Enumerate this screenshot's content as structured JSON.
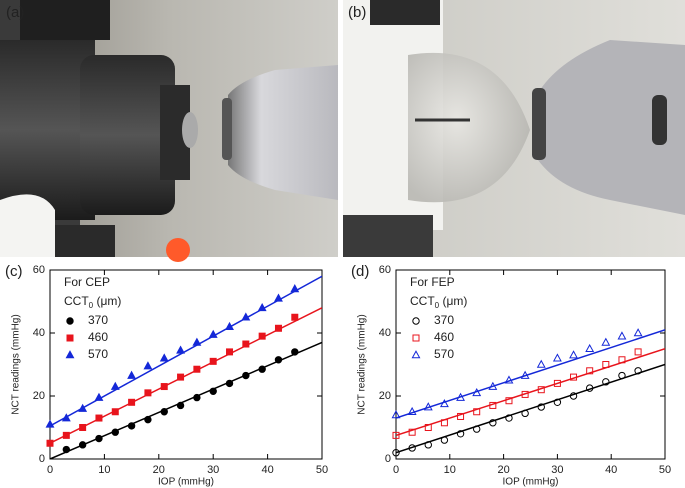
{
  "photo_labels": [
    "(a)",
    "(b)"
  ],
  "chart_data": [
    {
      "type": "scatter",
      "panel_label": "(c)",
      "x_label": "IOP (mmHg)",
      "y_label": "NCT readings (mmHg)",
      "legend_title": "For CEP",
      "legend_header": {
        "main": "CCT",
        "sub": "0",
        "unit": " (μm)"
      },
      "xlim": [
        0,
        50
      ],
      "ylim": [
        0,
        60
      ],
      "xticks": [
        0,
        10,
        20,
        30,
        40,
        50
      ],
      "yticks": [
        0,
        20,
        40,
        60
      ],
      "x": [
        0,
        3,
        6,
        9,
        12,
        15,
        18,
        21,
        24,
        27,
        30,
        33,
        36,
        39,
        42,
        45
      ],
      "series": [
        {
          "name": "370",
          "color": "#000000",
          "marker": "circle",
          "filled": true,
          "values": [
            null,
            3,
            4.5,
            6.5,
            8.5,
            10.5,
            12.5,
            15,
            17,
            19.5,
            21.5,
            24,
            26.5,
            28.5,
            31.5,
            34
          ],
          "fit": [
            0,
            37
          ]
        },
        {
          "name": "460",
          "color": "#e8141c",
          "marker": "square",
          "filled": true,
          "values": [
            5,
            7.5,
            10,
            13,
            15,
            18,
            21,
            23,
            26,
            28.5,
            31,
            34,
            36.5,
            39,
            41.5,
            45
          ],
          "fit": [
            5,
            48
          ]
        },
        {
          "name": "570",
          "color": "#1428d8",
          "marker": "triangle",
          "filled": true,
          "values": [
            11,
            13,
            16,
            19.5,
            23,
            26.5,
            29.5,
            32,
            34.5,
            37,
            39.5,
            42,
            45,
            48,
            51,
            54
          ],
          "fit": [
            10.5,
            58
          ]
        }
      ]
    },
    {
      "type": "scatter",
      "panel_label": "(d)",
      "x_label": "IOP (mmHg)",
      "y_label": "NCT readings (mmHg)",
      "legend_title": "For FEP",
      "legend_header": {
        "main": "CCT",
        "sub": "0",
        "unit": " (μm)"
      },
      "xlim": [
        0,
        50
      ],
      "ylim": [
        0,
        60
      ],
      "xticks": [
        0,
        10,
        20,
        30,
        40,
        50
      ],
      "yticks": [
        0,
        20,
        40,
        60
      ],
      "x": [
        0,
        3,
        6,
        9,
        12,
        15,
        18,
        21,
        24,
        27,
        30,
        33,
        36,
        39,
        42,
        45
      ],
      "series": [
        {
          "name": "370",
          "color": "#000000",
          "marker": "circle",
          "filled": false,
          "values": [
            2,
            3.5,
            4.5,
            6,
            8,
            9.5,
            11.5,
            13,
            14.5,
            16.5,
            18,
            20,
            22.5,
            24.5,
            26.5,
            28
          ],
          "fit": [
            2,
            30
          ]
        },
        {
          "name": "460",
          "color": "#e8141c",
          "marker": "square",
          "filled": false,
          "values": [
            7.5,
            8.5,
            10,
            11.5,
            13.5,
            15,
            17,
            18.5,
            20.5,
            22,
            24,
            26,
            28,
            30,
            31.5,
            34
          ],
          "fit": [
            7.5,
            35
          ]
        },
        {
          "name": "570",
          "color": "#1428d8",
          "marker": "triangle",
          "filled": false,
          "values": [
            14,
            15,
            16.5,
            17.5,
            19.5,
            21,
            23,
            25,
            26.5,
            30,
            32,
            33,
            35,
            37,
            39,
            40
          ],
          "fit": [
            13,
            41
          ]
        }
      ]
    }
  ]
}
